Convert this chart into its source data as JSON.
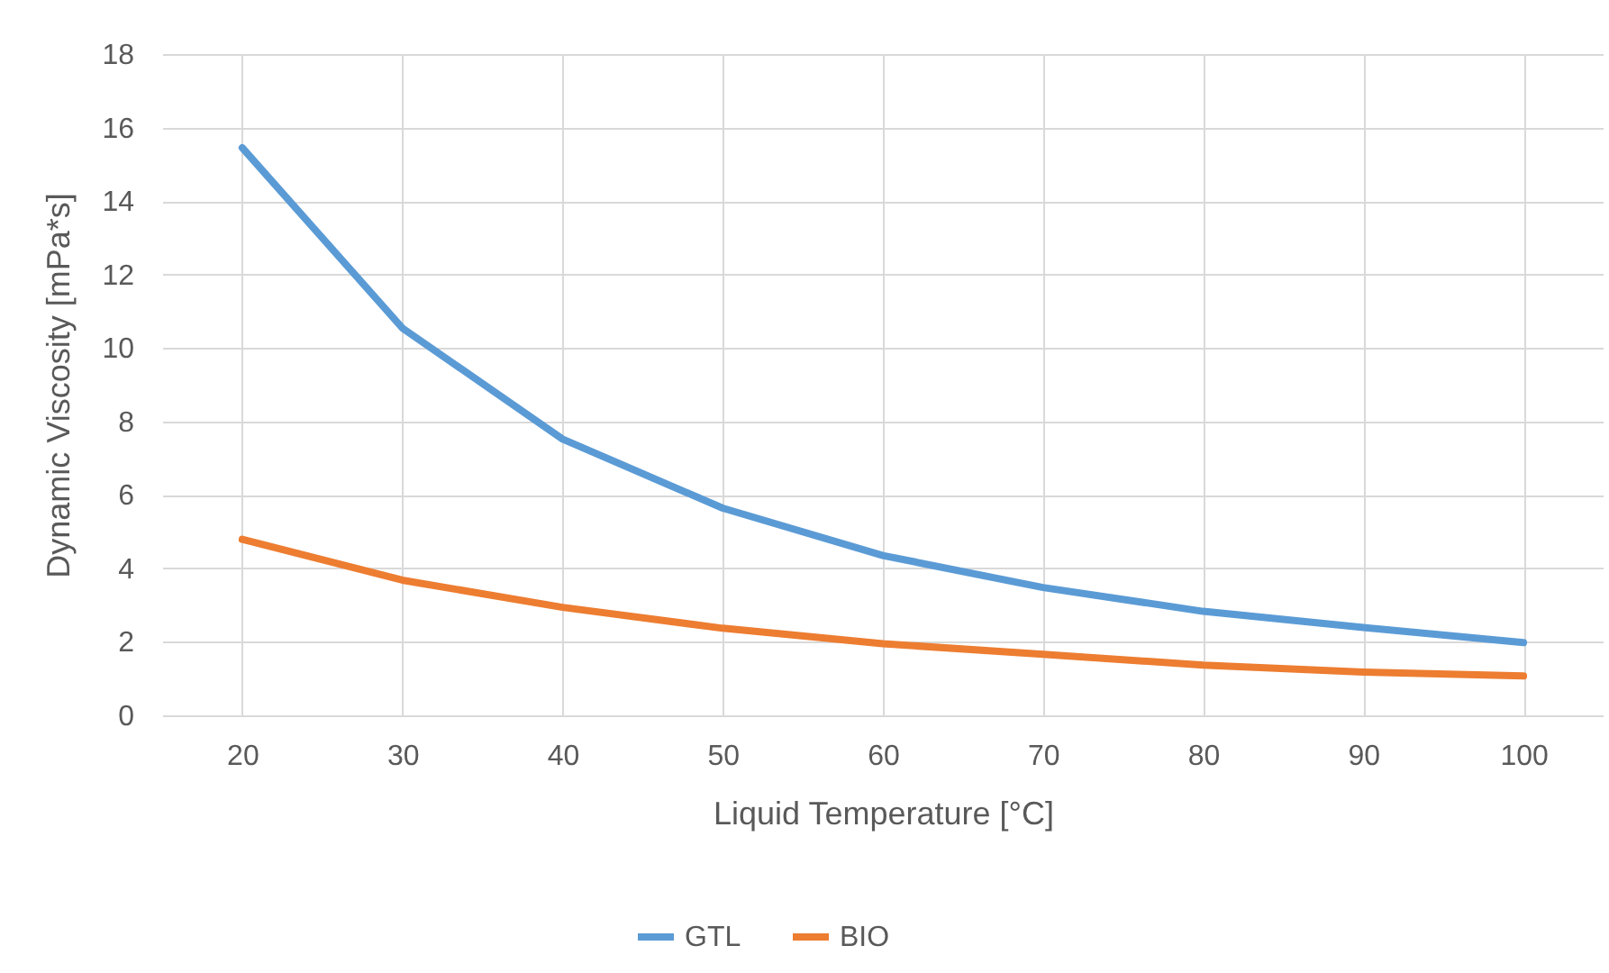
{
  "chart_data": {
    "type": "line",
    "xlabel": "Liquid Temperature [°C]",
    "ylabel": "Dynamic Viscosity [mPa*s]",
    "categories": [
      "20",
      "30",
      "40",
      "50",
      "60",
      "70",
      "80",
      "90",
      "100"
    ],
    "series": [
      {
        "name": "GTL",
        "color": "#5b9bd5",
        "values": [
          15.45,
          10.54,
          7.52,
          5.64,
          4.35,
          3.48,
          2.83,
          2.39,
          1.98
        ]
      },
      {
        "name": "BIO",
        "color": "#ed7d31",
        "values": [
          4.79,
          3.68,
          2.94,
          2.37,
          1.95,
          1.66,
          1.37,
          1.18,
          1.07
        ]
      }
    ],
    "ylim": [
      0,
      18
    ],
    "yticks": [
      0,
      2,
      4,
      6,
      8,
      10,
      12,
      14,
      16,
      18
    ],
    "grid": true,
    "legend": "bottom",
    "line_style": "solid",
    "marker": "none"
  }
}
